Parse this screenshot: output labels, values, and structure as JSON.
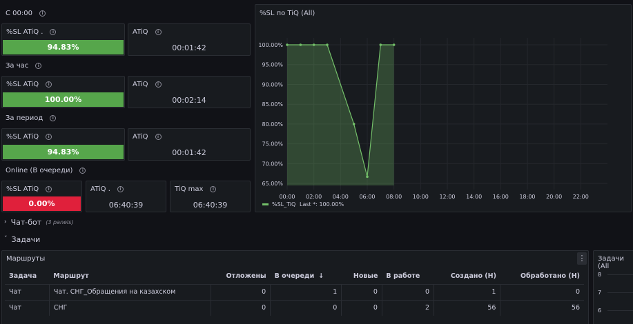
{
  "sections": {
    "s1": "С 00:00",
    "s2": "За час",
    "s3": "За период",
    "s4": "Online (В очереди)"
  },
  "stats": {
    "sl1": {
      "title": "%SL ATiQ .",
      "value": "94.83%"
    },
    "atiq1": {
      "title": "ATiQ",
      "value": "00:01:42"
    },
    "sl2": {
      "title": "%SL ATiQ",
      "value": "100.00%"
    },
    "atiq2": {
      "title": "ATiQ",
      "value": "00:02:14"
    },
    "sl3": {
      "title": "%SL ATiQ",
      "value": "94.83%"
    },
    "atiq3": {
      "title": "ATiQ",
      "value": "00:01:42"
    },
    "sl4": {
      "title": "%SL ATiQ",
      "value": "0.00%"
    },
    "atiq4": {
      "title": "ATiQ .",
      "value": "06:40:39"
    },
    "tiqmax": {
      "title": "TiQ max",
      "value": "06:40:39"
    }
  },
  "colors": {
    "green": "#56a64b",
    "red": "#e0203b",
    "line": "#73bf69"
  },
  "rows": {
    "chatbot": {
      "label": "Чат-бот",
      "sub": "(3 panels)"
    },
    "tasks": {
      "label": "Задачи"
    }
  },
  "chart_data": {
    "type": "area",
    "title": "%SL по TiQ (All)",
    "x_ticks": [
      "00:00",
      "02:00",
      "04:00",
      "06:00",
      "08:00",
      "10:00",
      "12:00",
      "14:00",
      "16:00",
      "18:00",
      "20:00",
      "22:00"
    ],
    "y_ticks": [
      "100.00%",
      "95.00%",
      "90.00%",
      "85.00%",
      "80.00%",
      "75.00%",
      "70.00%",
      "65.00%"
    ],
    "ylim": [
      64.5,
      100
    ],
    "xlim": [
      0,
      24
    ],
    "series": [
      {
        "name": "%SL_TiQ",
        "x": [
          0,
          1,
          2,
          3,
          5,
          6,
          7,
          8
        ],
        "values": [
          100,
          100,
          100,
          100,
          80,
          66.7,
          100,
          100
        ]
      }
    ],
    "legend": "%SL_TiQ",
    "legend_last": "Last *: 100.00%",
    "grid": true,
    "legend_position": "bottom-left"
  },
  "routes": {
    "title": "Маршруты",
    "columns": [
      "Задача",
      "Маршрут",
      "Отложены",
      "В очереди",
      "Новые",
      "В работе",
      "Создано (Н)",
      "Обработано (Н)"
    ],
    "sort_icon": "↓",
    "data": [
      [
        "Чат",
        "Чат. СНГ_Обращения на казахском",
        "0",
        "1",
        "0",
        "0",
        "1",
        "0"
      ],
      [
        "Чат",
        "СНГ",
        "0",
        "0",
        "0",
        "2",
        "56",
        "56"
      ]
    ]
  },
  "tasks_chart": {
    "title": "Задачи (All",
    "y_ticks": [
      "8",
      "7",
      "6"
    ]
  }
}
